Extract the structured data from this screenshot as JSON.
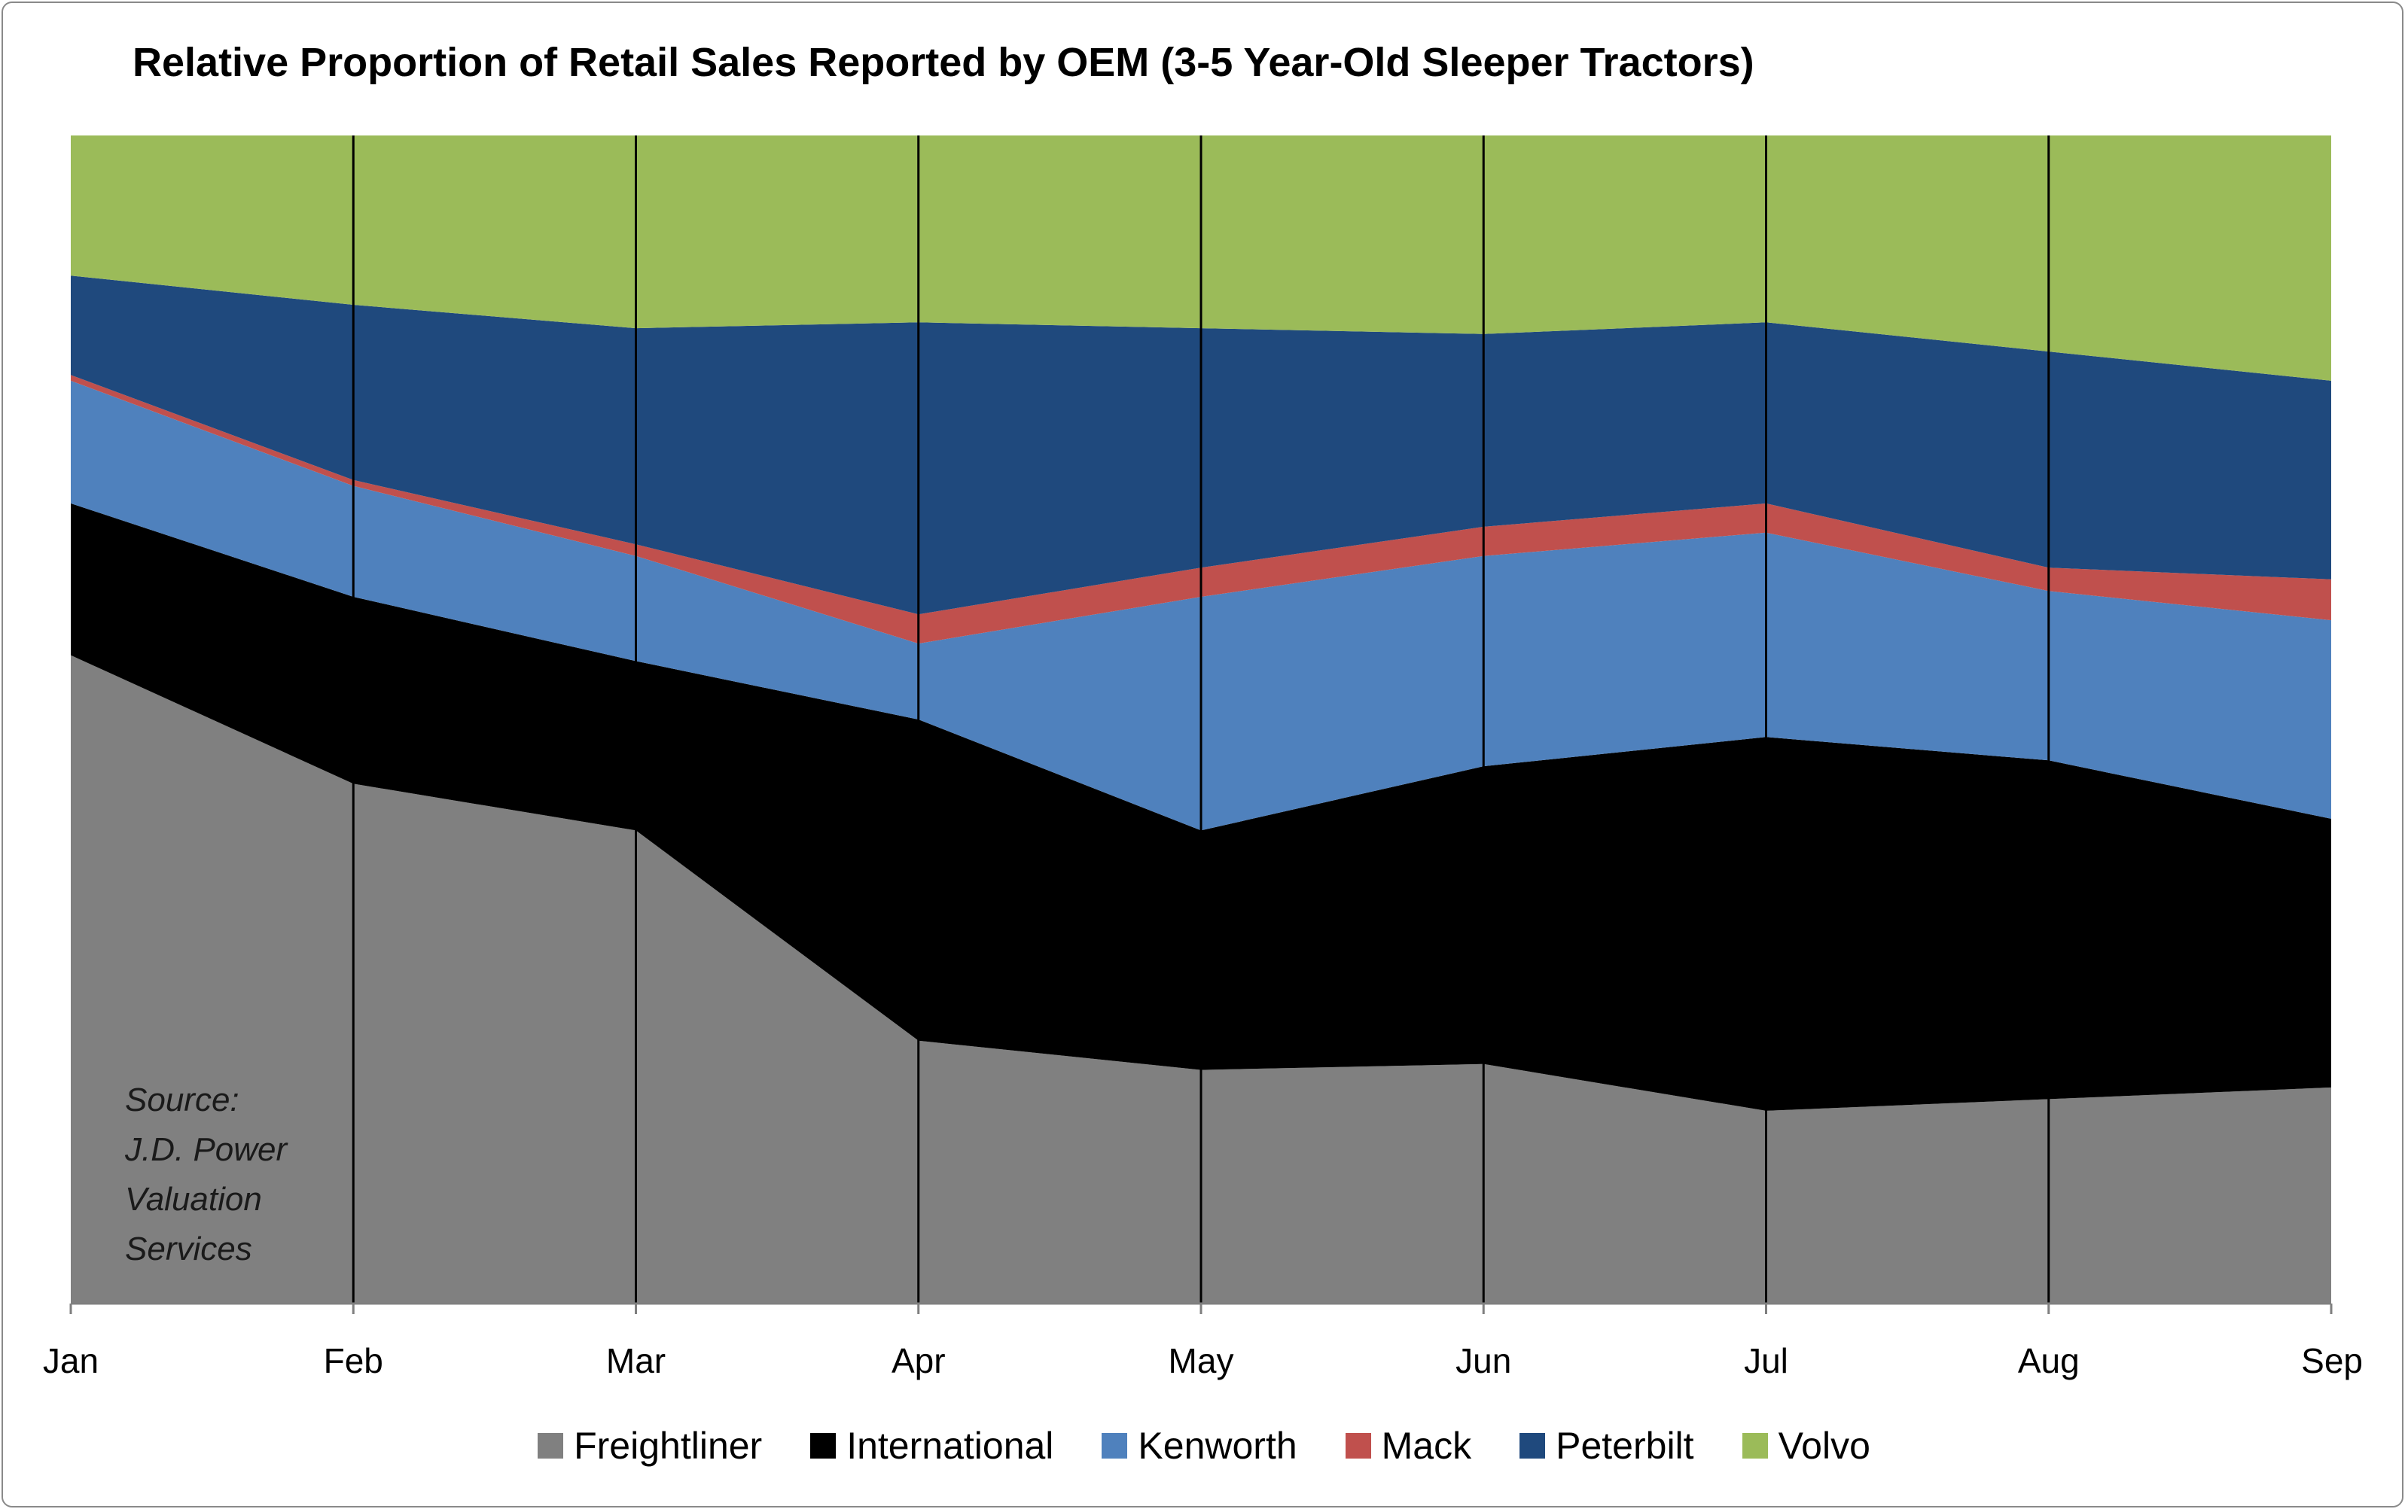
{
  "chart_data": {
    "type": "area",
    "stacked": "percent",
    "title": "Relative Proportion of Retail Sales Reported by OEM (3-5 Year-Old Sleeper Tractors)",
    "categories": [
      "Jan",
      "Feb",
      "Mar",
      "Apr",
      "May",
      "Jun",
      "Jul",
      "Aug",
      "Sep"
    ],
    "ylim": [
      0,
      100
    ],
    "series": [
      {
        "name": "Freightliner",
        "color": "#808080",
        "values": [
          55.5,
          44.5,
          40.5,
          22.5,
          20.0,
          20.5,
          16.5,
          17.5,
          18.5
        ]
      },
      {
        "name": "International",
        "color": "#000000",
        "values": [
          13.0,
          16.0,
          14.5,
          27.5,
          20.5,
          25.5,
          32.0,
          29.0,
          23.0
        ]
      },
      {
        "name": "Kenworth",
        "color": "#4f81bd",
        "values": [
          10.5,
          9.5,
          9.0,
          6.5,
          20.0,
          18.0,
          17.5,
          14.5,
          17.0
        ]
      },
      {
        "name": "Mack",
        "color": "#c0504d",
        "values": [
          0.5,
          0.5,
          1.0,
          2.5,
          2.5,
          2.5,
          2.5,
          2.0,
          3.5
        ]
      },
      {
        "name": "Peterbilt",
        "color": "#1f497d",
        "values": [
          8.5,
          15.0,
          18.5,
          25.0,
          20.5,
          16.5,
          15.5,
          18.5,
          17.0
        ]
      },
      {
        "name": "Volvo",
        "color": "#9bbb59",
        "values": [
          12.0,
          14.5,
          16.5,
          16.0,
          16.5,
          17.0,
          16.0,
          18.5,
          21.0
        ]
      }
    ],
    "annotation": [
      "Source:",
      "J.D. Power",
      "Valuation",
      "Services"
    ],
    "gridlines": "vertical",
    "legend_position": "bottom"
  }
}
